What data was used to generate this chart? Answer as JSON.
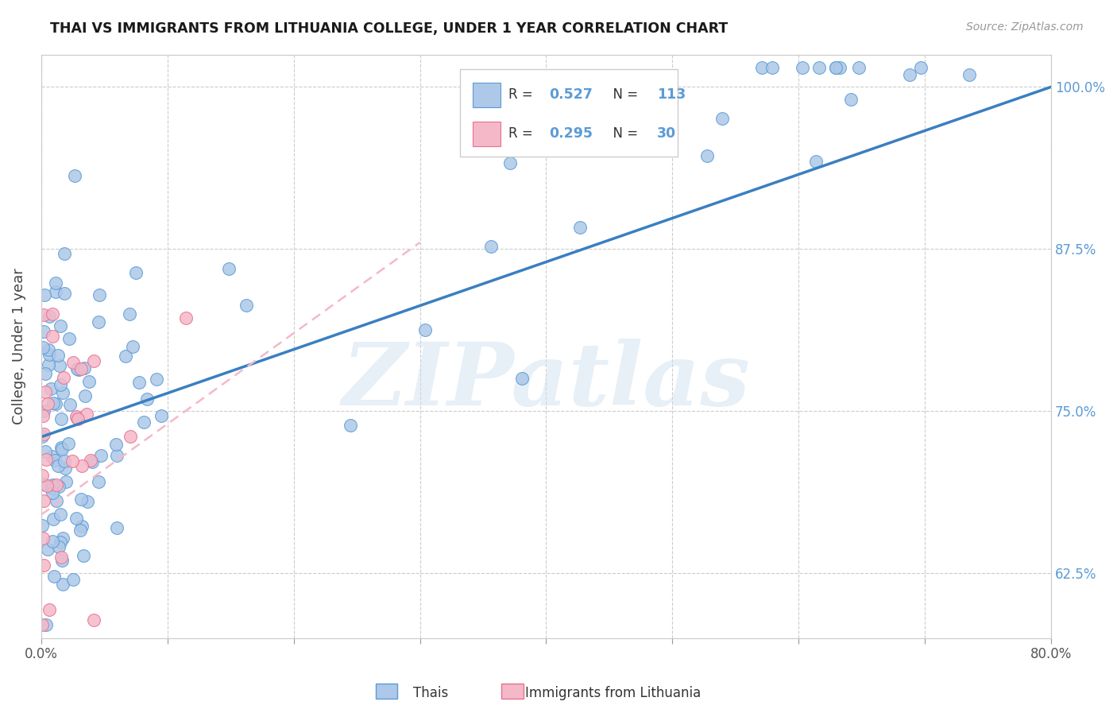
{
  "title": "THAI VS IMMIGRANTS FROM LITHUANIA COLLEGE, UNDER 1 YEAR CORRELATION CHART",
  "source": "Source: ZipAtlas.com",
  "ylabel": "College, Under 1 year",
  "watermark": "ZIPatlas",
  "xmin": 0.0,
  "xmax": 0.8,
  "ymin": 0.575,
  "ymax": 1.025,
  "yticks": [
    0.625,
    0.75,
    0.875,
    1.0
  ],
  "ytick_labels": [
    "62.5%",
    "75.0%",
    "87.5%",
    "100.0%"
  ],
  "xtick_positions": [
    0.0,
    0.1,
    0.2,
    0.3,
    0.4,
    0.5,
    0.6,
    0.7,
    0.8
  ],
  "thai_R": 0.527,
  "thai_N": 113,
  "lith_R": 0.295,
  "lith_N": 30,
  "thai_fill_color": "#adc8e8",
  "thai_edge_color": "#5b9bd5",
  "lith_fill_color": "#f5b8c8",
  "lith_edge_color": "#e87090",
  "lith_dash_color": "#f5b8c8",
  "thai_line_color": "#3a7fc1",
  "background_color": "#ffffff",
  "grid_color": "#cccccc",
  "title_color": "#1a1a1a",
  "right_tick_color": "#5b9bd5",
  "watermark_color": "#d0e0f0"
}
